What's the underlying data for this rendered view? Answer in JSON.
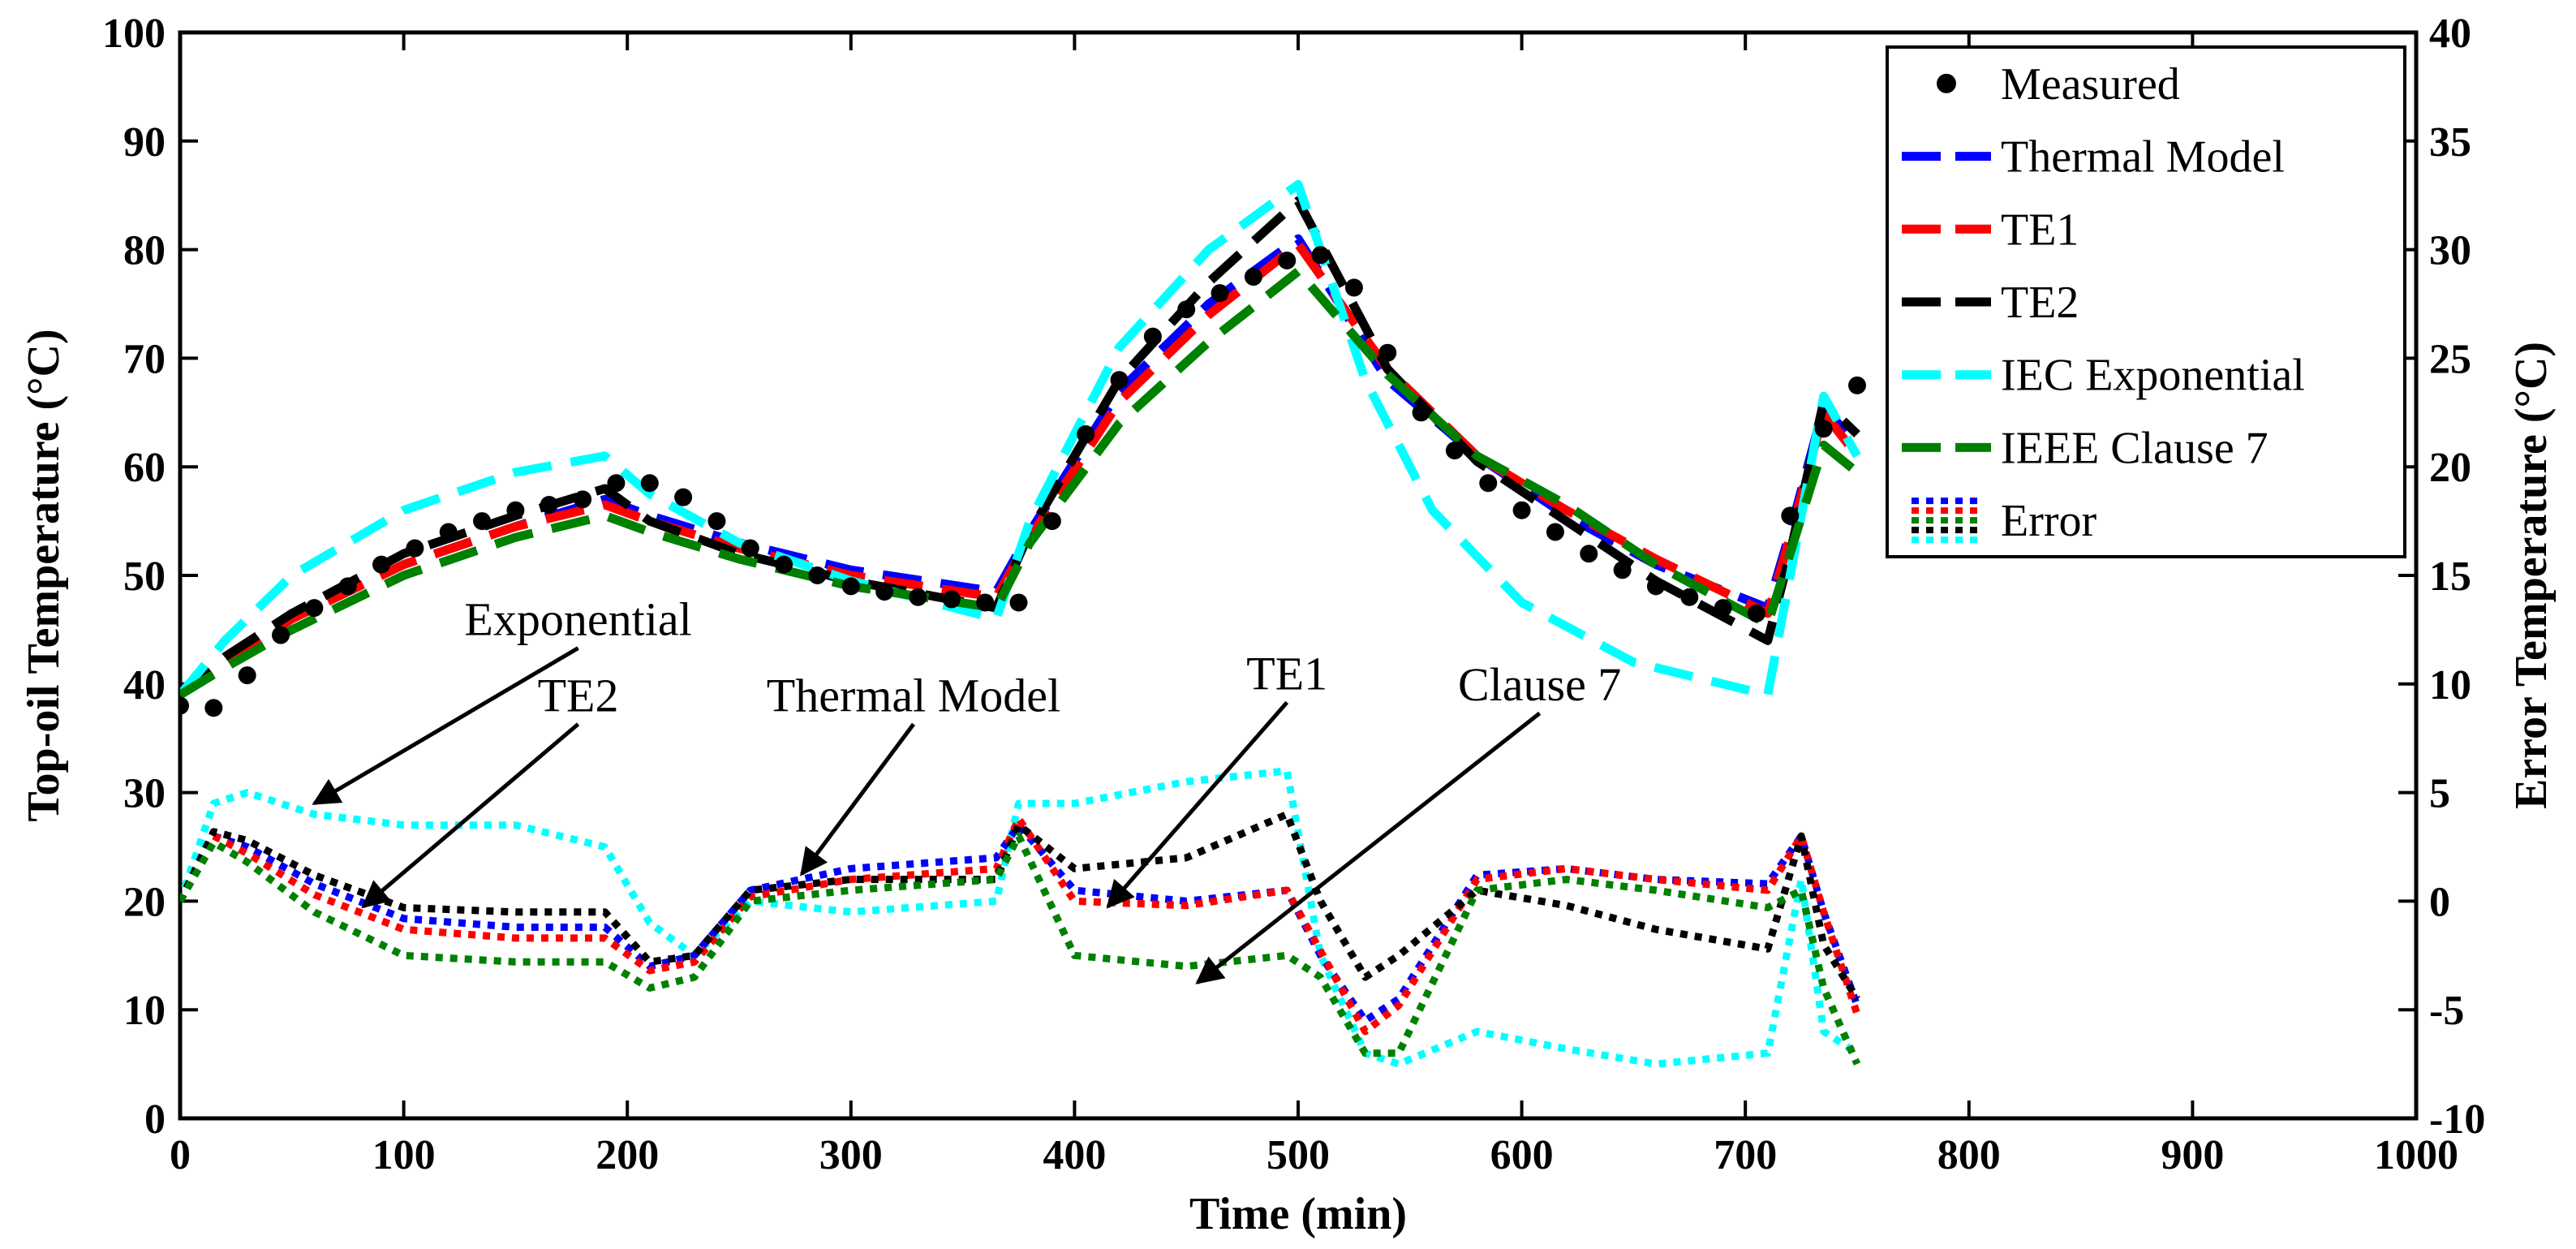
{
  "chart_data": {
    "type": "line",
    "title": "",
    "xlabel": "Time (min)",
    "ylabel": "Top-oil Temperature (°C)",
    "y2label": "Error Temperature (°C)",
    "xlim": [
      0,
      1000
    ],
    "ylim": [
      0,
      100
    ],
    "y2lim": [
      -10,
      40
    ],
    "xticks": [
      "0",
      "100",
      "200",
      "300",
      "400",
      "500",
      "600",
      "700",
      "800",
      "900",
      "1000"
    ],
    "yticks": [
      "0",
      "10",
      "20",
      "30",
      "40",
      "50",
      "60",
      "70",
      "80",
      "90",
      "100"
    ],
    "y2ticks": [
      "-10",
      "-5",
      "0",
      "5",
      "10",
      "15",
      "20",
      "25",
      "30",
      "35",
      "40"
    ],
    "grid": false,
    "legend_position": "top-right",
    "legend": [
      {
        "label": "Measured",
        "color": "#000000",
        "style": "marker"
      },
      {
        "label": "Thermal Model",
        "color": "#0000ff",
        "style": "dashed"
      },
      {
        "label": "TE1",
        "color": "#ff0000",
        "style": "dashed"
      },
      {
        "label": "TE2",
        "color": "#000000",
        "style": "dashed"
      },
      {
        "label": "IEC Exponential",
        "color": "#00ffff",
        "style": "dashed"
      },
      {
        "label": "IEEE Clause 7",
        "color": "#008000",
        "style": "dashed"
      },
      {
        "label": "Error",
        "colors": [
          "#0000ff",
          "#ff0000",
          "#008000",
          "#000000",
          "#00ffff"
        ],
        "style": "dotted"
      }
    ],
    "measured": {
      "x": [
        0,
        15,
        30,
        45,
        60,
        75,
        90,
        105,
        120,
        135,
        150,
        165,
        180,
        195,
        210,
        225,
        240,
        255,
        270,
        285,
        300,
        315,
        330,
        345,
        360,
        375,
        390,
        405,
        420,
        435,
        450,
        465,
        480,
        495,
        510,
        525,
        540,
        555,
        570,
        585,
        600,
        615,
        630,
        645,
        660,
        675,
        690,
        705,
        720,
        735,
        750
      ],
      "y": [
        38,
        37.8,
        40.8,
        44.5,
        47,
        49,
        51,
        52.5,
        54,
        55,
        56,
        56.5,
        57,
        58.5,
        58.5,
        57.2,
        55,
        52.5,
        51,
        50,
        49,
        48.5,
        48,
        47.8,
        47.5,
        47.5,
        55,
        63,
        68,
        72,
        74.5,
        76,
        77.5,
        79,
        79.5,
        76.5,
        70.5,
        65,
        61.5,
        58.5,
        56,
        54,
        52,
        50.5,
        49,
        48,
        47,
        46.5,
        55.5,
        63.5,
        67.5
      ]
    },
    "series": [
      {
        "name": "Thermal Model",
        "axis": "left",
        "color": "#0000ff",
        "style": "dashed",
        "x": [
          0,
          20,
          50,
          100,
          150,
          190,
          210,
          250,
          300,
          365,
          380,
          420,
          460,
          500,
          540,
          580,
          620,
          660,
          710,
          720,
          735,
          750
        ],
        "y": [
          39,
          42,
          46,
          51,
          54.5,
          57,
          55.5,
          53,
          50.5,
          48.5,
          54,
          67,
          75,
          81,
          68,
          61,
          55.5,
          51,
          47,
          54,
          65.5,
          62
        ]
      },
      {
        "name": "TE1",
        "axis": "left",
        "color": "#ff0000",
        "style": "dashed",
        "x": [
          0,
          20,
          50,
          100,
          150,
          190,
          210,
          250,
          300,
          365,
          380,
          420,
          460,
          500,
          540,
          580,
          620,
          660,
          710,
          720,
          735,
          750
        ],
        "y": [
          39,
          42,
          46,
          51,
          54.5,
          56.5,
          55,
          52.5,
          50,
          48,
          53.5,
          66,
          74,
          80.5,
          69,
          61,
          56,
          51.5,
          46.5,
          53.5,
          65,
          61
        ]
      },
      {
        "name": "TE2",
        "axis": "left",
        "color": "#000000",
        "style": "dashed",
        "x": [
          0,
          20,
          50,
          100,
          150,
          190,
          210,
          250,
          300,
          365,
          380,
          420,
          460,
          500,
          540,
          580,
          620,
          660,
          710,
          720,
          735,
          750
        ],
        "y": [
          39,
          42.5,
          46.5,
          52,
          55.5,
          58,
          55,
          52,
          49.5,
          47,
          54,
          68,
          77,
          84.5,
          69,
          60.5,
          55,
          49.5,
          44,
          52,
          66,
          63
        ]
      },
      {
        "name": "IEC Exponential",
        "axis": "left",
        "color": "#00ffff",
        "style": "dashed",
        "x": [
          0,
          20,
          50,
          100,
          150,
          190,
          210,
          250,
          300,
          365,
          380,
          420,
          460,
          500,
          530,
          560,
          600,
          650,
          710,
          735,
          750
        ],
        "y": [
          39,
          44,
          50,
          56,
          59.5,
          61,
          57.5,
          53,
          49.5,
          46,
          55,
          71,
          80,
          86,
          68,
          56,
          47.5,
          42,
          39,
          66.5,
          61
        ]
      },
      {
        "name": "IEEE Clause 7",
        "axis": "left",
        "color": "#008000",
        "style": "dashed",
        "x": [
          0,
          20,
          50,
          100,
          150,
          190,
          210,
          250,
          300,
          365,
          380,
          420,
          460,
          500,
          540,
          580,
          620,
          660,
          710,
          720,
          735,
          750
        ],
        "y": [
          39,
          41.5,
          45,
          50,
          53.5,
          55.5,
          54,
          51.5,
          49,
          47,
          53,
          64,
          71.5,
          78,
          68.5,
          61,
          56.5,
          51,
          45.5,
          52,
          62,
          59.5
        ]
      },
      {
        "name": "Error - IEC Exponential",
        "axis": "right",
        "color": "#00ffff",
        "style": "dotted",
        "x": [
          0,
          15,
          30,
          60,
          100,
          150,
          190,
          210,
          230,
          255,
          300,
          365,
          375,
          400,
          450,
          495,
          510,
          530,
          545,
          580,
          620,
          660,
          710,
          725,
          735,
          750
        ],
        "y": [
          0,
          4.5,
          5,
          4,
          3.5,
          3.5,
          2.5,
          -1,
          -2.5,
          0,
          -0.5,
          0,
          4.5,
          4.5,
          5.5,
          6,
          -2.5,
          -7,
          -7.5,
          -6,
          -6.8,
          -7.5,
          -7,
          1,
          -6,
          -7
        ]
      },
      {
        "name": "Error - Thermal Model",
        "axis": "right",
        "color": "#0000ff",
        "style": "dotted",
        "x": [
          0,
          15,
          30,
          60,
          100,
          150,
          190,
          210,
          230,
          255,
          300,
          365,
          375,
          400,
          450,
          495,
          510,
          530,
          545,
          580,
          620,
          660,
          710,
          725,
          735,
          750
        ],
        "y": [
          0,
          3,
          2.5,
          0.8,
          -0.8,
          -1.2,
          -1.2,
          -3,
          -2.5,
          0.5,
          1.5,
          2,
          3.5,
          0.5,
          0,
          0.5,
          -2.5,
          -5.5,
          -4.5,
          1.2,
          1.5,
          1,
          0.8,
          3,
          -0.5,
          -4.8
        ]
      },
      {
        "name": "Error - TE1",
        "axis": "right",
        "color": "#ff0000",
        "style": "dotted",
        "x": [
          0,
          15,
          30,
          60,
          100,
          150,
          190,
          210,
          230,
          255,
          300,
          365,
          375,
          400,
          450,
          495,
          510,
          530,
          545,
          580,
          620,
          660,
          710,
          725,
          735,
          750
        ],
        "y": [
          0,
          3,
          2.2,
          0.3,
          -1.3,
          -1.7,
          -1.7,
          -3.2,
          -2.8,
          0.2,
          1,
          1.5,
          3.8,
          0,
          -0.2,
          0.5,
          -2.3,
          -6,
          -4.8,
          1,
          1.5,
          1,
          0.5,
          3,
          -0.5,
          -5.2
        ]
      },
      {
        "name": "Error - TE2",
        "axis": "right",
        "color": "#000000",
        "style": "dotted",
        "x": [
          0,
          15,
          30,
          60,
          100,
          150,
          190,
          210,
          230,
          255,
          300,
          365,
          375,
          400,
          450,
          495,
          510,
          530,
          545,
          580,
          620,
          660,
          710,
          725,
          735,
          750
        ],
        "y": [
          0,
          3.2,
          2.8,
          1.2,
          -0.3,
          -0.5,
          -0.5,
          -2.8,
          -2.5,
          0.5,
          1,
          1,
          3.5,
          1.5,
          2,
          4,
          0,
          -3.5,
          -2.5,
          0.5,
          -0.2,
          -1.3,
          -2.2,
          3,
          -2,
          -4.5
        ]
      },
      {
        "name": "Error - IEEE Clause 7",
        "axis": "right",
        "color": "#008000",
        "style": "dotted",
        "x": [
          0,
          15,
          30,
          60,
          100,
          150,
          190,
          210,
          230,
          255,
          300,
          365,
          375,
          400,
          450,
          495,
          510,
          530,
          545,
          580,
          620,
          660,
          710,
          725,
          735,
          750
        ],
        "y": [
          0,
          2.7,
          1.8,
          -0.5,
          -2.5,
          -2.8,
          -2.8,
          -4,
          -3.5,
          0,
          0.5,
          1,
          3,
          -2.5,
          -3,
          -2.5,
          -3.5,
          -7,
          -7,
          0.5,
          1,
          0.5,
          -0.3,
          0.5,
          -4,
          -7.5
        ]
      }
    ],
    "annotations": [
      {
        "text": "Exponential",
        "label_x": 178,
        "label_y": 44.5,
        "arrow_to": [
          60,
          29
        ]
      },
      {
        "text": "TE2",
        "label_x": 178,
        "label_y": 37.5,
        "arrow_to": [
          82,
          19.5
        ]
      },
      {
        "text": "Thermal Model",
        "label_x": 328,
        "label_y": 37.5,
        "arrow_to": [
          278,
          22.5
        ]
      },
      {
        "text": "TE1",
        "label_x": 495,
        "label_y": 39.5,
        "arrow_to": [
          415,
          19.5
        ]
      },
      {
        "text": "Clause 7",
        "label_x": 608,
        "label_y": 38.5,
        "arrow_to": [
          455,
          12.5
        ]
      }
    ]
  }
}
